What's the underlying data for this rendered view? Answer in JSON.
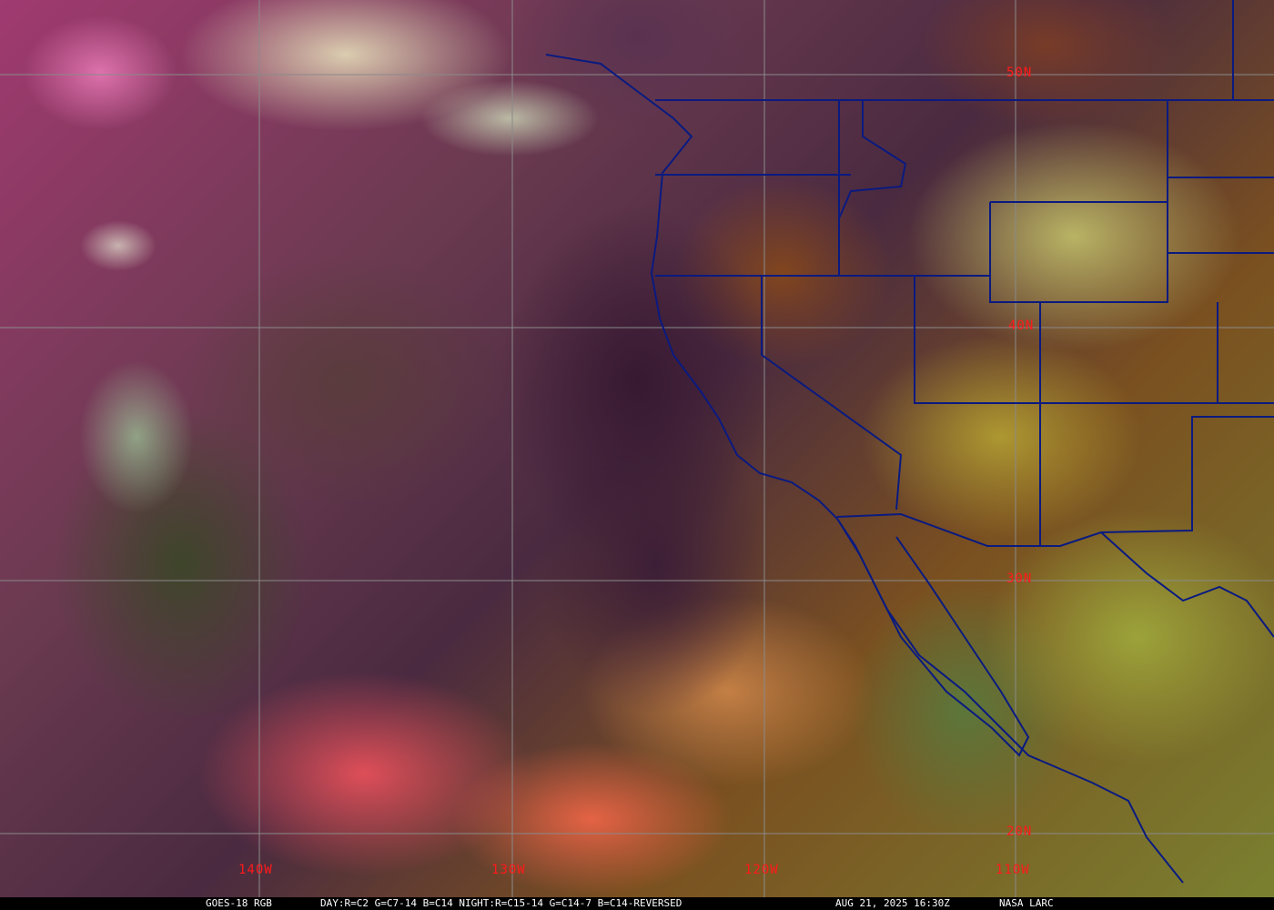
{
  "map": {
    "latitude_labels": [
      "50N",
      "40N",
      "30N",
      "20N"
    ],
    "longitude_labels": [
      "140W",
      "130W",
      "120W",
      "110W"
    ],
    "colors": {
      "grid": "#8a8a8a",
      "borders": "#0a1a80",
      "labels": "#ff1a1a"
    }
  },
  "caption": {
    "satellite": "GOES-18 RGB",
    "recipe": "DAY:R=C2 G=C7-14 B=C14 NIGHT:R=C15-14 G=C14-7 B=C14-REVERSED",
    "timestamp": "AUG 21, 2025 16:30Z",
    "credit": "NASA LARC"
  }
}
